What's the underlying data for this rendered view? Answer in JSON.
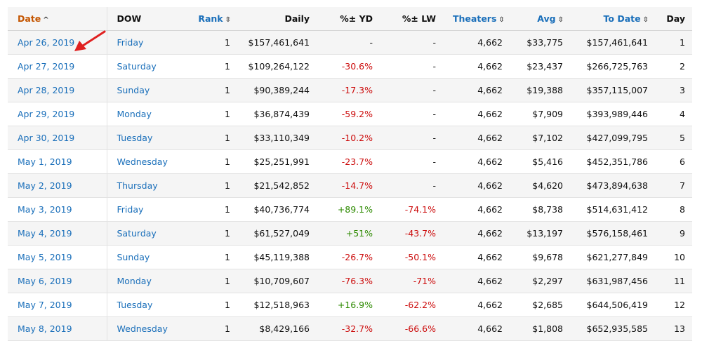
{
  "headers": {
    "date": "Date",
    "dow": "DOW",
    "rank": "Rank",
    "daily": "Daily",
    "yd": "%± YD",
    "lw": "%± LW",
    "theaters": "Theaters",
    "avg": "Avg",
    "todate": "To Date",
    "day": "Day"
  },
  "sort_icons": {
    "active": "caret-up-icon",
    "inactive": "sort-updown-icon"
  },
  "colors": {
    "link": "#1a6fba",
    "active_sort": "#c45500",
    "negative": "#cc0c0c",
    "positive": "#2d8a00",
    "marker": "#e02020"
  },
  "rows": [
    {
      "date": "Apr 26, 2019",
      "dow": "Friday",
      "rank": "1",
      "daily": "$157,461,641",
      "yd": "-",
      "lw": "-",
      "theaters": "4,662",
      "avg": "$33,775",
      "todate": "$157,461,641",
      "day": "1"
    },
    {
      "date": "Apr 27, 2019",
      "dow": "Saturday",
      "rank": "1",
      "daily": "$109,264,122",
      "yd": "-30.6%",
      "lw": "-",
      "theaters": "4,662",
      "avg": "$23,437",
      "todate": "$266,725,763",
      "day": "2"
    },
    {
      "date": "Apr 28, 2019",
      "dow": "Sunday",
      "rank": "1",
      "daily": "$90,389,244",
      "yd": "-17.3%",
      "lw": "-",
      "theaters": "4,662",
      "avg": "$19,388",
      "todate": "$357,115,007",
      "day": "3"
    },
    {
      "date": "Apr 29, 2019",
      "dow": "Monday",
      "rank": "1",
      "daily": "$36,874,439",
      "yd": "-59.2%",
      "lw": "-",
      "theaters": "4,662",
      "avg": "$7,909",
      "todate": "$393,989,446",
      "day": "4"
    },
    {
      "date": "Apr 30, 2019",
      "dow": "Tuesday",
      "rank": "1",
      "daily": "$33,110,349",
      "yd": "-10.2%",
      "lw": "-",
      "theaters": "4,662",
      "avg": "$7,102",
      "todate": "$427,099,795",
      "day": "5"
    },
    {
      "date": "May 1, 2019",
      "dow": "Wednesday",
      "rank": "1",
      "daily": "$25,251,991",
      "yd": "-23.7%",
      "lw": "-",
      "theaters": "4,662",
      "avg": "$5,416",
      "todate": "$452,351,786",
      "day": "6"
    },
    {
      "date": "May 2, 2019",
      "dow": "Thursday",
      "rank": "1",
      "daily": "$21,542,852",
      "yd": "-14.7%",
      "lw": "-",
      "theaters": "4,662",
      "avg": "$4,620",
      "todate": "$473,894,638",
      "day": "7"
    },
    {
      "date": "May 3, 2019",
      "dow": "Friday",
      "rank": "1",
      "daily": "$40,736,774",
      "yd": "+89.1%",
      "lw": "-74.1%",
      "theaters": "4,662",
      "avg": "$8,738",
      "todate": "$514,631,412",
      "day": "8"
    },
    {
      "date": "May 4, 2019",
      "dow": "Saturday",
      "rank": "1",
      "daily": "$61,527,049",
      "yd": "+51%",
      "lw": "-43.7%",
      "theaters": "4,662",
      "avg": "$13,197",
      "todate": "$576,158,461",
      "day": "9"
    },
    {
      "date": "May 5, 2019",
      "dow": "Sunday",
      "rank": "1",
      "daily": "$45,119,388",
      "yd": "-26.7%",
      "lw": "-50.1%",
      "theaters": "4,662",
      "avg": "$9,678",
      "todate": "$621,277,849",
      "day": "10"
    },
    {
      "date": "May 6, 2019",
      "dow": "Monday",
      "rank": "1",
      "daily": "$10,709,607",
      "yd": "-76.3%",
      "lw": "-71%",
      "theaters": "4,662",
      "avg": "$2,297",
      "todate": "$631,987,456",
      "day": "11"
    },
    {
      "date": "May 7, 2019",
      "dow": "Tuesday",
      "rank": "1",
      "daily": "$12,518,963",
      "yd": "+16.9%",
      "lw": "-62.2%",
      "theaters": "4,662",
      "avg": "$2,685",
      "todate": "$644,506,419",
      "day": "12"
    },
    {
      "date": "May 8, 2019",
      "dow": "Wednesday",
      "rank": "1",
      "daily": "$8,429,166",
      "yd": "-32.7%",
      "lw": "-66.6%",
      "theaters": "4,662",
      "avg": "$1,808",
      "todate": "$652,935,585",
      "day": "13"
    }
  ]
}
